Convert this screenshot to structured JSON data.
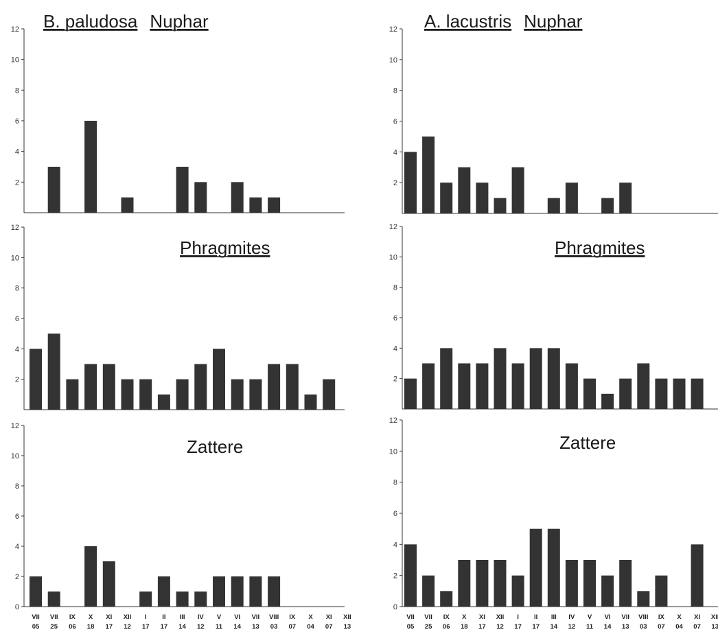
{
  "figure": {
    "species_left": "B. paludosa",
    "species_right": "A. lacustris",
    "habitats": [
      "Nuphar",
      "Phragmites",
      "Zattere"
    ]
  },
  "x_labels": {
    "months": [
      "VII",
      "VII",
      "IX",
      "X",
      "XI",
      "XII",
      "I",
      "II",
      "III",
      "IV",
      "V",
      "VI",
      "VII",
      "VIII",
      "IX",
      "X",
      "XI",
      "XII"
    ],
    "days": [
      "05",
      "25",
      "06",
      "18",
      "17",
      "12",
      "17",
      "17",
      "14",
      "12",
      "11",
      "14",
      "13",
      "03",
      "07",
      "04",
      "07",
      "13"
    ]
  },
  "chart_data": [
    {
      "type": "bar",
      "panel": "B. paludosa / Nuphar",
      "title_parts": [
        "B. paludosa",
        "Nuphar"
      ],
      "ylim": [
        0,
        12
      ],
      "yticks": [
        2,
        4,
        6,
        8,
        10,
        12
      ],
      "values": [
        0,
        3,
        0,
        6,
        0,
        1,
        0,
        0,
        3,
        2,
        0,
        2,
        1,
        1,
        0,
        0,
        0,
        0
      ]
    },
    {
      "type": "bar",
      "panel": "A. lacustris / Nuphar",
      "title_parts": [
        "A. lacustris",
        "Nuphar"
      ],
      "ylim": [
        0,
        12
      ],
      "yticks": [
        2,
        4,
        6,
        8,
        10,
        12
      ],
      "values": [
        4,
        5,
        2,
        3,
        2,
        1,
        3,
        0,
        1,
        2,
        0,
        1,
        2,
        0,
        0,
        0,
        0,
        0
      ]
    },
    {
      "type": "bar",
      "panel": "B. paludosa / Phragmites",
      "title_parts": [
        "Phragmites"
      ],
      "ylim": [
        0,
        12
      ],
      "yticks": [
        2,
        4,
        6,
        8,
        10,
        12
      ],
      "values": [
        4,
        5,
        2,
        3,
        3,
        2,
        2,
        1,
        2,
        3,
        4,
        2,
        2,
        3,
        3,
        1,
        2,
        0
      ]
    },
    {
      "type": "bar",
      "panel": "A. lacustris / Phragmites",
      "title_parts": [
        "Phragmites"
      ],
      "ylim": [
        0,
        12
      ],
      "yticks": [
        2,
        4,
        6,
        8,
        10,
        12
      ],
      "values": [
        2,
        3,
        4,
        3,
        3,
        4,
        3,
        4,
        4,
        3,
        2,
        1,
        2,
        3,
        2,
        2,
        2,
        0
      ]
    },
    {
      "type": "bar",
      "panel": "B. paludosa / Zattere",
      "title_parts": [
        "Zattere"
      ],
      "ylim": [
        0,
        12
      ],
      "yticks": [
        0,
        2,
        4,
        6,
        8,
        10,
        12
      ],
      "values": [
        2,
        1,
        0,
        4,
        3,
        0,
        1,
        2,
        1,
        1,
        2,
        2,
        2,
        2,
        0,
        0,
        0,
        0
      ]
    },
    {
      "type": "bar",
      "panel": "A. lacustris / Zattere",
      "title_parts": [
        "Zattere"
      ],
      "ylim": [
        0,
        12
      ],
      "yticks": [
        0,
        2,
        4,
        6,
        8,
        10,
        12
      ],
      "values": [
        4,
        2,
        1,
        3,
        3,
        3,
        2,
        5,
        5,
        3,
        3,
        2,
        3,
        1,
        2,
        0,
        4,
        0
      ]
    }
  ]
}
